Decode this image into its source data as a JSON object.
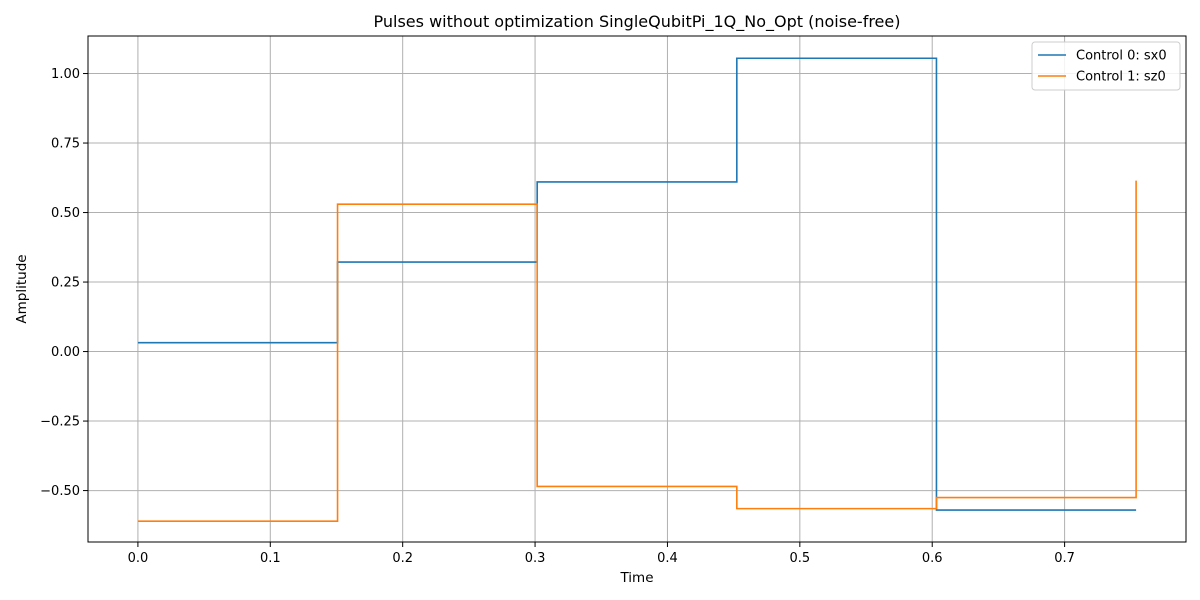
{
  "chart_data": {
    "type": "line",
    "step": "post",
    "title": "Pulses without optimization SingleQubitPi_1Q_No_Opt (noise-free)",
    "xlabel": "Time",
    "ylabel": "Amplitude",
    "xlim": [
      -0.0377,
      0.7917
    ],
    "ylim": [
      -0.685,
      1.135
    ],
    "xticks": [
      0.0,
      0.1,
      0.2,
      0.3,
      0.4,
      0.5,
      0.6,
      0.7
    ],
    "xtick_labels": [
      "0.0",
      "0.1",
      "0.2",
      "0.3",
      "0.4",
      "0.5",
      "0.6",
      "0.7"
    ],
    "yticks": [
      -0.5,
      -0.25,
      0.0,
      0.25,
      0.5,
      0.75,
      1.0
    ],
    "ytick_labels": [
      "−0.50",
      "−0.25",
      "0.00",
      "0.25",
      "0.50",
      "0.75",
      "1.00"
    ],
    "grid": true,
    "legend_position": "top-right",
    "series": [
      {
        "name": "Control 0: sx0",
        "color": "#1f77b4",
        "x": [
          0.0,
          0.1508,
          0.3016,
          0.4524,
          0.6032,
          0.754
        ],
        "y": [
          0.032,
          0.322,
          0.61,
          1.055,
          -0.57,
          -0.57
        ]
      },
      {
        "name": "Control 1: sz0",
        "color": "#ff7f0e",
        "x": [
          0.0,
          0.1508,
          0.3016,
          0.4524,
          0.6032,
          0.754
        ],
        "y": [
          -0.61,
          0.53,
          -0.485,
          -0.565,
          -0.525,
          0.615
        ]
      }
    ]
  }
}
